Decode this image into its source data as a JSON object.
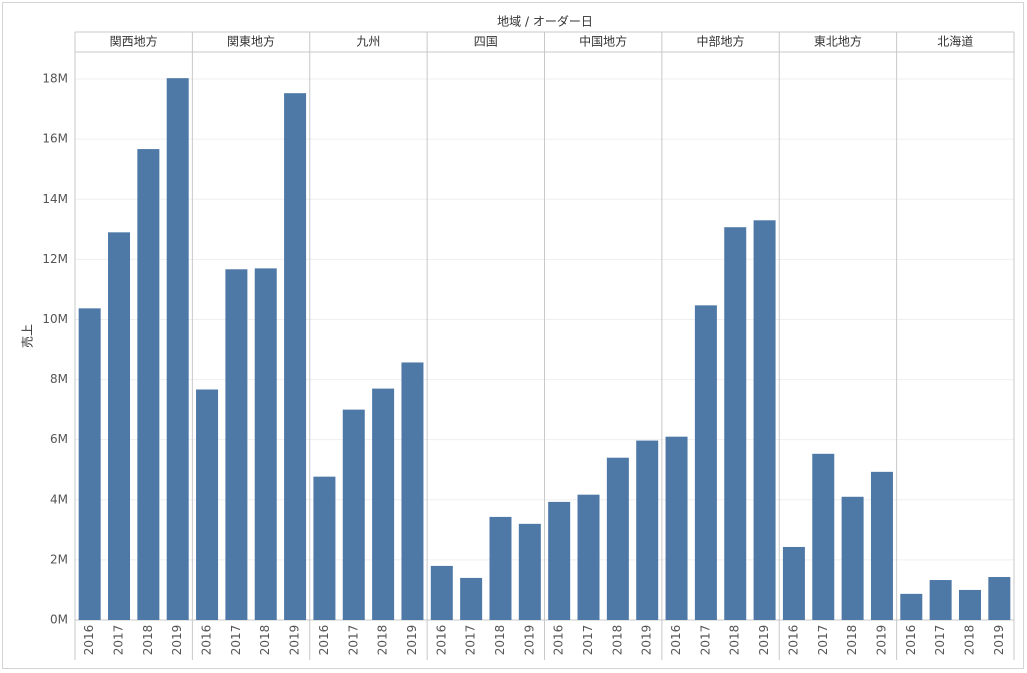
{
  "chart_data": {
    "type": "bar",
    "title": "地域 / オーダー日",
    "y_label": "売上",
    "categories": [
      "2016",
      "2017",
      "2018",
      "2019"
    ],
    "color": "#4e79a7",
    "groups": [
      {
        "name": "関西地方",
        "values": [
          10370000,
          12900000,
          15670000,
          18030000
        ]
      },
      {
        "name": "関東地方",
        "values": [
          7670000,
          11670000,
          11700000,
          17530000
        ]
      },
      {
        "name": "九州",
        "values": [
          4770000,
          7000000,
          7700000,
          8570000
        ]
      },
      {
        "name": "四国",
        "values": [
          1800000,
          1400000,
          3430000,
          3200000
        ]
      },
      {
        "name": "中国地方",
        "values": [
          3930000,
          4170000,
          5400000,
          5970000
        ]
      },
      {
        "name": "中部地方",
        "values": [
          6100000,
          10470000,
          13070000,
          13300000
        ]
      },
      {
        "name": "東北地方",
        "values": [
          2430000,
          5530000,
          4100000,
          4930000
        ]
      },
      {
        "name": "北海道",
        "values": [
          870000,
          1330000,
          1000000,
          1430000
        ]
      }
    ],
    "ylim": [
      0,
      18900000
    ],
    "yticks": [
      {
        "value": 0,
        "label": "0M"
      },
      {
        "value": 2000000,
        "label": "2M"
      },
      {
        "value": 4000000,
        "label": "4M"
      },
      {
        "value": 6000000,
        "label": "6M"
      },
      {
        "value": 8000000,
        "label": "8M"
      },
      {
        "value": 10000000,
        "label": "10M"
      },
      {
        "value": 12000000,
        "label": "12M"
      },
      {
        "value": 14000000,
        "label": "14M"
      },
      {
        "value": 16000000,
        "label": "16M"
      },
      {
        "value": 18000000,
        "label": "18M"
      }
    ],
    "grid": true
  }
}
